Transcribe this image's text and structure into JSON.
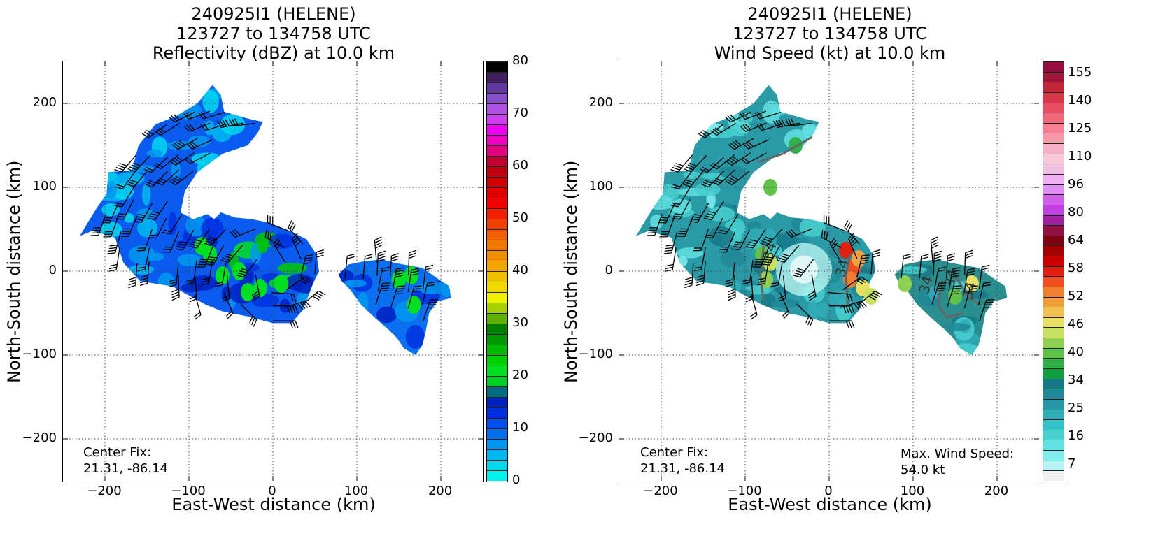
{
  "chart_data": [
    {
      "type": "heatmap",
      "title": [
        "240925I1 (HELENE)",
        "123727 to 134758 UTC",
        "Reflectivity (dBZ) at 10.0 km"
      ],
      "xlabel": "East-West distance (km)",
      "ylabel": "North-South distance (km)",
      "xlim": [
        -250,
        250
      ],
      "ylim": [
        -250,
        250
      ],
      "xticks": [
        -200,
        -100,
        0,
        100,
        200
      ],
      "yticks": [
        -200,
        -100,
        0,
        100,
        200
      ],
      "grid": true,
      "annotation": [
        "Center Fix:",
        "21.31, -86.14"
      ],
      "colorbar": {
        "min": 0,
        "max": 80,
        "ticks": [
          0,
          10,
          20,
          30,
          40,
          50,
          60,
          70,
          80
        ],
        "colors": [
          "#00f0f0",
          "#00d8f0",
          "#00b8f0",
          "#0098f0",
          "#0070f0",
          "#0050f0",
          "#0030e0",
          "#0020c0",
          "#006e80",
          "#00d020",
          "#00e020",
          "#00d000",
          "#00b800",
          "#009800",
          "#008000",
          "#60b000",
          "#a8d000",
          "#f0f000",
          "#f0d800",
          "#f0c000",
          "#f0a800",
          "#f09000",
          "#f07800",
          "#f06000",
          "#f04000",
          "#f02000",
          "#f00000",
          "#e00000",
          "#d00000",
          "#c00010",
          "#c00030",
          "#e00080",
          "#f000c0",
          "#f000f0",
          "#d040f0",
          "#b050e0",
          "#8850c8",
          "#6038a0",
          "#402060",
          "#000000"
        ]
      },
      "center_fix": [
        21.31,
        -86.14
      ]
    },
    {
      "type": "heatmap",
      "title": [
        "240925I1 (HELENE)",
        "123727 to 134758 UTC",
        "Wind Speed (kt) at 10.0 km"
      ],
      "xlabel": "East-West distance (km)",
      "ylabel": "North-South distance (km)",
      "xlim": [
        -250,
        250
      ],
      "ylim": [
        -250,
        250
      ],
      "xticks": [
        -200,
        -100,
        0,
        100,
        200
      ],
      "yticks": [
        -200,
        -100,
        0,
        100,
        200
      ],
      "grid": true,
      "annotation": [
        "Center Fix:",
        "21.31, -86.14"
      ],
      "annotation2": [
        "Max. Wind Speed:",
        "54.0 kt"
      ],
      "max_wind_speed_kt": 54.0,
      "contour_level_kt": 34,
      "colorbar": {
        "ticks_labels": [
          "7",
          "16",
          "25",
          "34",
          "40",
          "46",
          "52",
          "58",
          "64",
          "80",
          "96",
          "110",
          "125",
          "140",
          "155"
        ],
        "colors": [
          "#f0f0f0",
          "#b8f4f4",
          "#80eeee",
          "#60e0e0",
          "#48d0d0",
          "#38c0c8",
          "#30acb8",
          "#2898a8",
          "#208898",
          "#187888",
          "#10a040",
          "#30b048",
          "#60c048",
          "#90d050",
          "#c8e060",
          "#e8e060",
          "#f0c050",
          "#f0a040",
          "#f08030",
          "#f05020",
          "#e02010",
          "#c80000",
          "#a00000",
          "#800010",
          "#901040",
          "#a020a0",
          "#c040e0",
          "#d060e8",
          "#e090f0",
          "#f0b0f0",
          "#f0c0e0",
          "#f8c8d8",
          "#f8b0c8",
          "#f89aaa",
          "#f88090",
          "#f06878",
          "#e85060",
          "#d83848",
          "#c02838",
          "#a01838",
          "#901040"
        ]
      },
      "center_fix": [
        21.31,
        -86.14
      ]
    }
  ]
}
